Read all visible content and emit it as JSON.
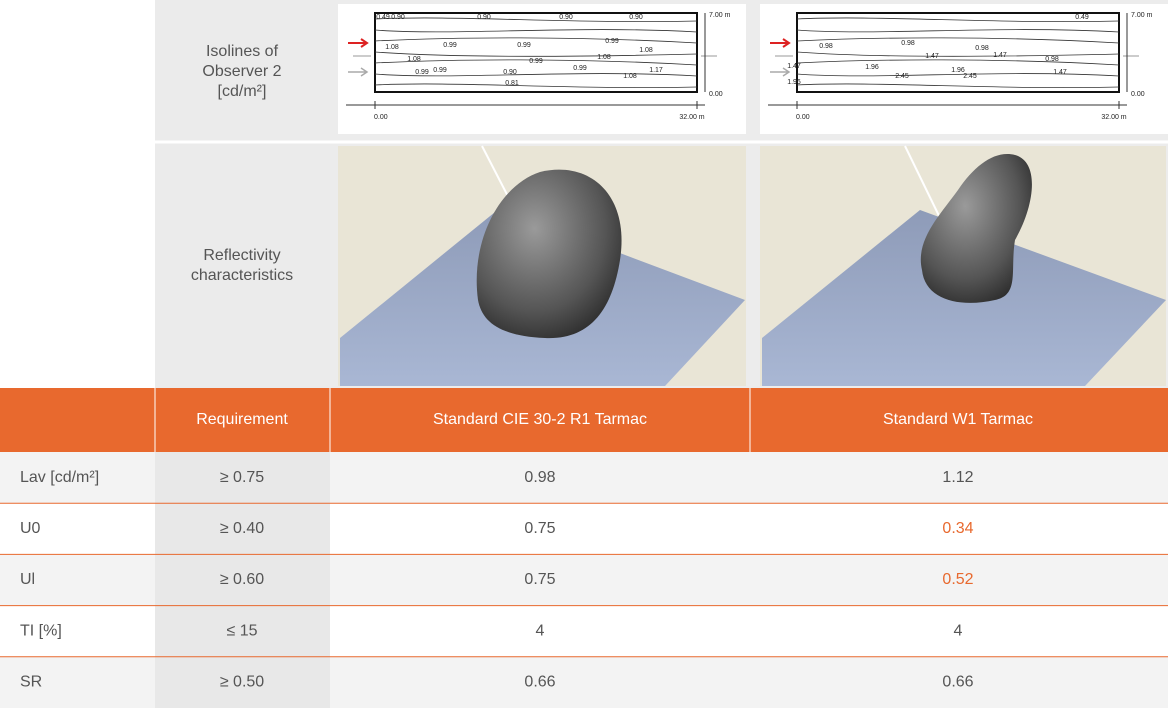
{
  "isolines_row": {
    "label_lines": [
      "Isolines of",
      "Observer 2",
      "[cd/m²]"
    ],
    "diagrams": [
      {
        "labels": [
          "0.90",
          "0.90",
          "0.90",
          "0.90",
          "1.08",
          "0.99",
          "0.99",
          "0.99",
          "0.99",
          "1.08",
          "1.08",
          "0.99",
          "1.08",
          "0.99",
          "0.99",
          "0.90",
          "1.08",
          "1.17",
          "0.81"
        ],
        "height_label": "7.00 m",
        "zero_label": "0.00",
        "x_start": "0.00",
        "x_end": "32.00 m"
      },
      {
        "labels": [
          "0.49",
          "0.49",
          "0.98",
          "0.98",
          "0.98",
          "0.98",
          "1.47",
          "1.47",
          "1.47",
          "1.96",
          "1.96",
          "1.96",
          "2.45",
          "2.45",
          "1.47"
        ],
        "height_label": "7.00 m",
        "zero_label": "0.00",
        "x_start": "0.00",
        "x_end": "32.00 m"
      }
    ]
  },
  "reflectivity_row": {
    "label_lines": [
      "Reflectivity",
      "characteristics"
    ]
  },
  "table": {
    "header": [
      "Requirement",
      "Standard CIE 30-2 R1 Tarmac",
      "Standard W1 Tarmac"
    ],
    "rows": [
      [
        "Lav [cd/m²]",
        "≥ 0.75",
        "0.98",
        "1.12"
      ],
      [
        "U0",
        "≥ 0.40",
        "0.75",
        "0.34"
      ],
      [
        "Ul",
        "≥ 0.60",
        "0.75",
        "0.52"
      ],
      [
        "TI [%]",
        "≤ 15",
        "4",
        "4"
      ],
      [
        "SR",
        "≥ 0.50",
        "0.66",
        "0.66"
      ]
    ],
    "highlighted": [
      [
        1,
        3
      ],
      [
        2,
        3
      ]
    ],
    "highlight_color": "#e8692e"
  }
}
